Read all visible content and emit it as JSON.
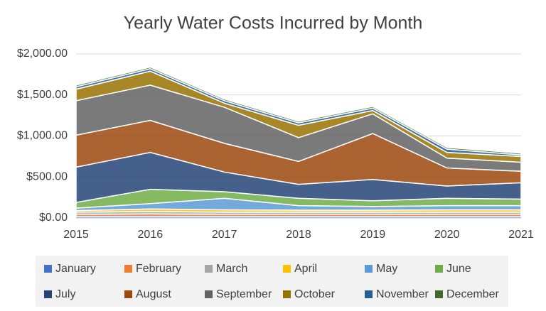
{
  "chart_data": {
    "type": "stacked-area",
    "title": "Yearly Water Costs Incurred by Month",
    "x": [
      2015,
      2016,
      2017,
      2018,
      2019,
      2020,
      2021
    ],
    "xlim": [
      2015,
      2021
    ],
    "xticks": [
      2015,
      2016,
      2017,
      2018,
      2019,
      2020,
      2021
    ],
    "ylim": [
      0,
      2000
    ],
    "yticks": [
      {
        "value": 0,
        "label": "$0.00"
      },
      {
        "value": 500,
        "label": "$500.00"
      },
      {
        "value": 1000,
        "label": "$1,000.00"
      },
      {
        "value": 1500,
        "label": "$1,500.00"
      },
      {
        "value": 2000,
        "label": "$2,000.00"
      }
    ],
    "grid": true,
    "legend": "bottom",
    "series": [
      {
        "name": "January",
        "color": "#4472c4",
        "values": [
          20,
          20,
          20,
          20,
          20,
          20,
          20
        ]
      },
      {
        "name": "February",
        "color": "#ed7d31",
        "values": [
          25,
          30,
          25,
          25,
          25,
          25,
          25
        ]
      },
      {
        "name": "March",
        "color": "#a5a5a5",
        "values": [
          25,
          30,
          25,
          25,
          25,
          25,
          25
        ]
      },
      {
        "name": "April",
        "color": "#ffc000",
        "values": [
          20,
          30,
          30,
          25,
          25,
          30,
          30
        ]
      },
      {
        "name": "May",
        "color": "#5b9bd5",
        "values": [
          30,
          65,
          140,
          55,
          45,
          50,
          50
        ]
      },
      {
        "name": "June",
        "color": "#70ad47",
        "values": [
          70,
          175,
          80,
          90,
          70,
          90,
          80
        ]
      },
      {
        "name": "July",
        "color": "#264478",
        "values": [
          430,
          450,
          240,
          170,
          260,
          150,
          200
        ]
      },
      {
        "name": "August",
        "color": "#9e480e",
        "values": [
          390,
          390,
          350,
          280,
          560,
          220,
          140
        ]
      },
      {
        "name": "September",
        "color": "#636363",
        "values": [
          420,
          430,
          440,
          290,
          240,
          120,
          110
        ]
      },
      {
        "name": "October",
        "color": "#997300",
        "values": [
          140,
          170,
          50,
          150,
          40,
          70,
          70
        ]
      },
      {
        "name": "November",
        "color": "#255e91",
        "values": [
          30,
          30,
          30,
          30,
          30,
          40,
          20
        ]
      },
      {
        "name": "December",
        "color": "#43682b",
        "values": [
          20,
          20,
          20,
          20,
          20,
          20,
          20
        ]
      }
    ]
  }
}
